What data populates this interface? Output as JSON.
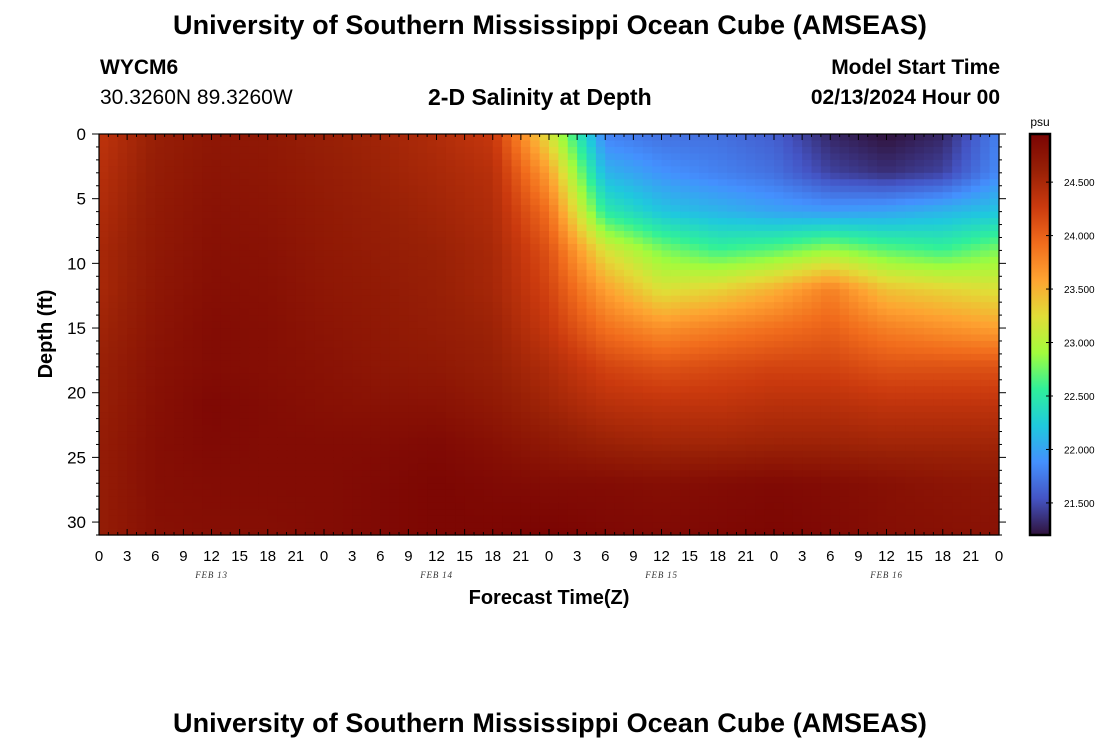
{
  "header": {
    "title": "University of Southern Mississippi Ocean Cube (AMSEAS)",
    "station_id": "WYCM6",
    "coordinates": "30.3260N  89.3260W",
    "subtitle": "2-D Salinity at Depth",
    "model_start_label": "Model Start Time",
    "model_start_value": "02/13/2024 Hour 00"
  },
  "footer": {
    "title": "University of Southern Mississippi Ocean Cube (AMSEAS)"
  },
  "chart_data": {
    "type": "heatmap",
    "title": "2-D Salinity at Depth",
    "xlabel": "Forecast Time(Z)",
    "ylabel": "Depth (ft)",
    "x_tick_labels": [
      "0",
      "3",
      "6",
      "9",
      "12",
      "15",
      "18",
      "21",
      "0",
      "3",
      "6",
      "9",
      "12",
      "15",
      "18",
      "21",
      "0",
      "3",
      "6",
      "9",
      "12",
      "15",
      "18",
      "21",
      "0",
      "3",
      "6",
      "9",
      "12",
      "15",
      "18",
      "21",
      "0"
    ],
    "date_labels": [
      "FEB 13",
      "FEB 14",
      "FEB 15",
      "FEB 16"
    ],
    "xlim_hours": [
      0,
      96
    ],
    "y_ticks": [
      0,
      5,
      10,
      15,
      20,
      25,
      30
    ],
    "ylim": [
      0,
      31
    ],
    "y_inverted": true,
    "colorbar": {
      "unit": "psu",
      "ticks": [
        "24.500",
        "24.000",
        "23.500",
        "23.000",
        "22.500",
        "22.000",
        "21.500"
      ],
      "tick_values": [
        24.5,
        24.0,
        23.5,
        23.0,
        22.5,
        22.0,
        21.5
      ],
      "range": [
        21.2,
        24.95
      ],
      "colormap": [
        "#30123b",
        "#4454c4",
        "#4490fe",
        "#1fc9dd",
        "#2ff09a",
        "#a2fc3c",
        "#e1dd37",
        "#fea331",
        "#f16c1c",
        "#cb3a0e",
        "#982006",
        "#7a0403"
      ]
    },
    "salinity_grid": {
      "time_hours": [
        0,
        6,
        12,
        18,
        24,
        30,
        36,
        42,
        48,
        54,
        60,
        66,
        72,
        78,
        84,
        90,
        96
      ],
      "depth_ft": [
        0,
        3,
        6,
        9,
        12,
        15,
        18,
        21,
        24,
        27,
        31
      ],
      "values": [
        [
          24.35,
          24.62,
          24.72,
          24.7,
          24.62,
          24.55,
          24.45,
          24.3,
          23.2,
          21.8,
          21.7,
          21.7,
          21.6,
          21.3,
          21.2,
          21.3,
          21.8
        ],
        [
          24.4,
          24.65,
          24.75,
          24.72,
          24.65,
          24.58,
          24.5,
          24.4,
          23.6,
          22.1,
          21.9,
          21.8,
          21.7,
          21.45,
          21.35,
          21.45,
          21.85
        ],
        [
          24.45,
          24.68,
          24.78,
          24.75,
          24.68,
          24.62,
          24.55,
          24.45,
          23.9,
          22.5,
          22.2,
          22.1,
          22.0,
          21.95,
          22.0,
          22.1,
          22.2
        ],
        [
          24.5,
          24.7,
          24.8,
          24.78,
          24.7,
          24.65,
          24.6,
          24.5,
          24.1,
          23.2,
          22.8,
          22.6,
          22.7,
          22.9,
          22.7,
          22.6,
          22.8
        ],
        [
          24.5,
          24.72,
          24.82,
          24.8,
          24.72,
          24.68,
          24.62,
          24.52,
          24.2,
          23.6,
          23.2,
          23.3,
          23.5,
          23.8,
          23.4,
          23.3,
          23.2
        ],
        [
          24.55,
          24.75,
          24.85,
          24.82,
          24.75,
          24.7,
          24.65,
          24.58,
          24.3,
          23.9,
          23.7,
          23.8,
          23.9,
          24.0,
          23.8,
          23.7,
          23.6
        ],
        [
          24.6,
          24.78,
          24.85,
          24.82,
          24.78,
          24.72,
          24.7,
          24.62,
          24.45,
          24.2,
          24.1,
          24.15,
          24.2,
          24.2,
          24.1,
          24.1,
          24.1
        ],
        [
          24.62,
          24.8,
          24.9,
          24.85,
          24.8,
          24.78,
          24.78,
          24.7,
          24.55,
          24.4,
          24.35,
          24.35,
          24.4,
          24.4,
          24.35,
          24.35,
          24.35
        ],
        [
          24.65,
          24.82,
          24.88,
          24.85,
          24.85,
          24.85,
          24.88,
          24.8,
          24.7,
          24.6,
          24.55,
          24.55,
          24.58,
          24.58,
          24.55,
          24.55,
          24.55
        ],
        [
          24.65,
          24.82,
          24.85,
          24.85,
          24.85,
          24.88,
          24.92,
          24.88,
          24.85,
          24.85,
          24.82,
          24.85,
          24.88,
          24.85,
          24.8,
          24.75,
          24.72
        ],
        [
          24.65,
          24.8,
          24.82,
          24.82,
          24.85,
          24.88,
          24.92,
          24.92,
          24.95,
          24.9,
          24.88,
          24.9,
          24.92,
          24.88,
          24.82,
          24.8,
          24.78
        ]
      ]
    }
  }
}
